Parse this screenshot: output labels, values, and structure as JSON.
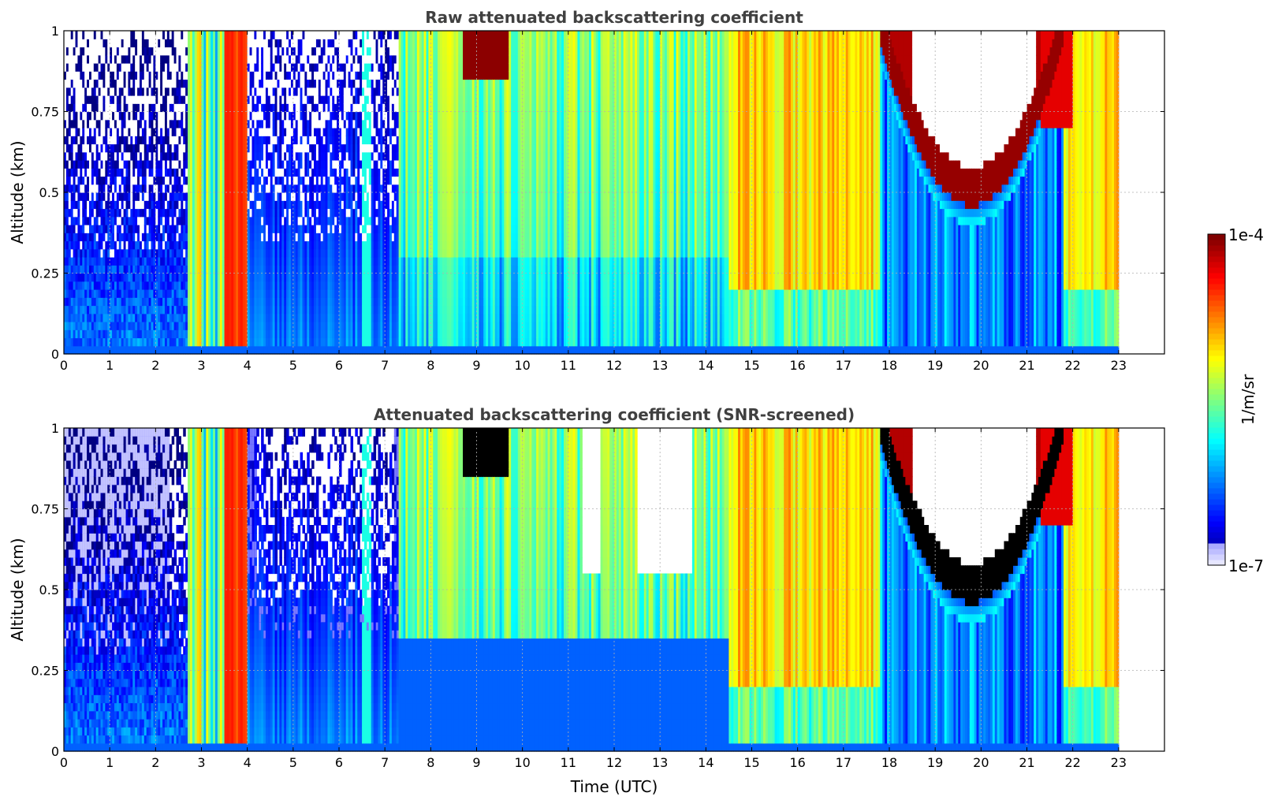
{
  "figure": {
    "xlabel": "Time (UTC)",
    "colorbar": {
      "label": "1/m/sr",
      "max_label": "1e-4",
      "min_label": "1e-7",
      "min": 1e-07,
      "max": 0.0001,
      "scale": "log",
      "colormap": "jet"
    },
    "colors": {
      "title_text": "#404040",
      "grid": "#b0b0b0",
      "saturated_screened": "#000000",
      "background": "#ffffff"
    }
  },
  "chart_data": [
    {
      "type": "heatmap",
      "title": "Raw attenuated backscattering coefficient",
      "xlabel": "",
      "ylabel": "Altitude (km)",
      "xlim": [
        0,
        24
      ],
      "ylim": [
        0,
        1
      ],
      "xticks": [
        "0",
        "1",
        "2",
        "3",
        "4",
        "5",
        "6",
        "7",
        "8",
        "9",
        "10",
        "11",
        "12",
        "13",
        "14",
        "15",
        "16",
        "17",
        "18",
        "19",
        "20",
        "21",
        "22",
        "23"
      ],
      "yticks": [
        "0",
        "0.25",
        "0.5",
        "0.75",
        "1"
      ],
      "grid": true,
      "data_extent_hours": [
        0,
        23
      ],
      "color_value_unit": "log10 relative position between 1e-7 and 1e-4 (0=low,1=high)",
      "features": [
        {
          "name": "clear-air noise",
          "t": [
            0,
            2.7
          ],
          "level_low_alt": 0.2,
          "level_high_alt": -0.05
        },
        {
          "name": "cloud layer 1",
          "t": [
            3.6,
            4.0
          ],
          "level_low_alt": 0.8,
          "level_high_alt": 0.82
        },
        {
          "name": "aerosol plumes",
          "t": [
            7.3,
            14.5
          ],
          "level_low_alt": 0.35,
          "level_high_alt": 0.55
        },
        {
          "name": "cloud top 9h",
          "t": [
            8.7,
            9.6
          ],
          "alt": [
            0.85,
            1.0
          ],
          "level": 1.0
        },
        {
          "name": "boundary layer",
          "t": [
            14.5,
            23
          ],
          "level_low_alt": 0.45,
          "level_high_alt": 0.65
        },
        {
          "name": "cloud base arc",
          "t": [
            17.8,
            21.8
          ],
          "alt_min": 0.48,
          "level": 1.0
        },
        {
          "name": "cloud layer 22h",
          "t": [
            21.3,
            22.0
          ],
          "level_low_alt": 0.8,
          "level_high_alt": 0.85
        }
      ]
    },
    {
      "type": "heatmap",
      "title": "Attenuated backscattering coefficient (SNR-screened)",
      "xlabel": "Time (UTC)",
      "ylabel": "Altitude (km)",
      "xlim": [
        0,
        24
      ],
      "ylim": [
        0,
        1
      ],
      "xticks": [
        "0",
        "1",
        "2",
        "3",
        "4",
        "5",
        "6",
        "7",
        "8",
        "9",
        "10",
        "11",
        "12",
        "13",
        "14",
        "15",
        "16",
        "17",
        "18",
        "19",
        "20",
        "21",
        "22",
        "23"
      ],
      "yticks": [
        "0",
        "0.25",
        "0.5",
        "0.75",
        "1"
      ],
      "grid": true,
      "data_extent_hours": [
        0,
        23
      ],
      "features": [
        {
          "name": "screened-out gaps",
          "t": [
            [
              4.2,
              6.4
            ],
            [
              6.7,
              7.2
            ],
            [
              11.4,
              11.7
            ],
            [
              12.4,
              13.8
            ]
          ],
          "alt_min": 0.45
        },
        {
          "name": "cloud top saturated",
          "t": [
            8.7,
            9.9
          ],
          "alt": [
            0.85,
            1.0
          ],
          "color": "black"
        },
        {
          "name": "cloud base arc saturated",
          "t": [
            17.8,
            21.8
          ],
          "alt_min": 0.48,
          "color": "black"
        }
      ]
    }
  ]
}
